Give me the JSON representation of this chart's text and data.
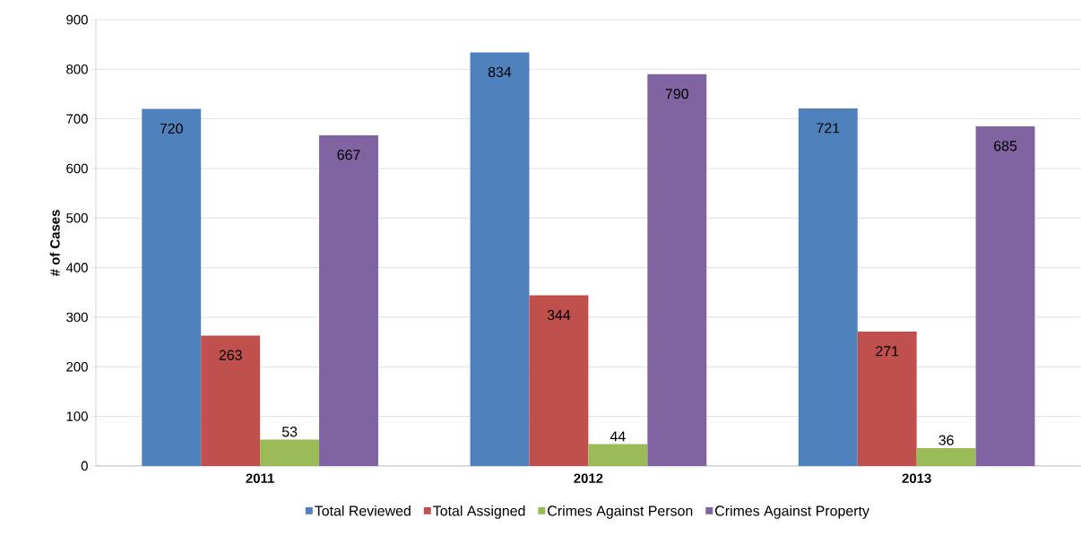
{
  "chart_data": {
    "type": "bar",
    "ylabel": "# of Cases",
    "categories": [
      "2011",
      "2012",
      "2013"
    ],
    "series": [
      {
        "name": "Total Reviewed",
        "color": "#4f81bd",
        "values": [
          720,
          834,
          721
        ]
      },
      {
        "name": "Total Assigned",
        "color": "#c0504d",
        "values": [
          263,
          344,
          271
        ]
      },
      {
        "name": "Crimes Against Person",
        "color": "#9bbb59",
        "values": [
          53,
          44,
          36
        ]
      },
      {
        "name": "Crimes Against Property",
        "color": "#8064a2",
        "values": [
          667,
          790,
          685
        ]
      }
    ],
    "ylim": [
      0,
      900
    ],
    "yticks": [
      0,
      100,
      200,
      300,
      400,
      500,
      600,
      700,
      800,
      900
    ],
    "grid": "y",
    "legend": "bottom",
    "data_labels": true
  }
}
